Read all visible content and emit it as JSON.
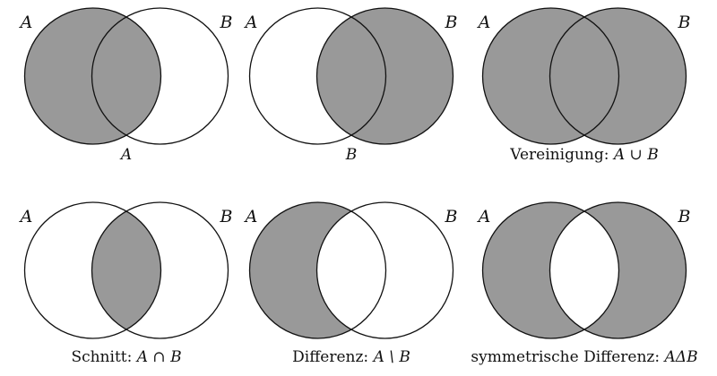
{
  "shade_color": "#999999",
  "outline_color": "#111111",
  "diagrams": [
    {
      "id": "set-a",
      "shaded": [
        "a_only",
        "both"
      ],
      "label_a": "A",
      "label_b": "B",
      "caption_text": "",
      "caption_expr": "A"
    },
    {
      "id": "set-b",
      "shaded": [
        "b_only",
        "both"
      ],
      "label_a": "A",
      "label_b": "B",
      "caption_text": "",
      "caption_expr": "B"
    },
    {
      "id": "union",
      "shaded": [
        "a_only",
        "both",
        "b_only"
      ],
      "label_a": "A",
      "label_b": "B",
      "caption_text": "Vereinigung: ",
      "caption_expr": "A ∪ B"
    },
    {
      "id": "intersection",
      "shaded": [
        "both"
      ],
      "label_a": "A",
      "label_b": "B",
      "caption_text": "Schnitt: ",
      "caption_expr": "A ∩ B"
    },
    {
      "id": "difference",
      "shaded": [
        "a_only"
      ],
      "label_a": "A",
      "label_b": "B",
      "caption_text": "Differenz: ",
      "caption_expr": "A \\ B"
    },
    {
      "id": "symmetric-difference",
      "shaded": [
        "a_only",
        "b_only"
      ],
      "label_a": "A",
      "label_b": "B",
      "caption_text": "symmetrische Differenz: ",
      "caption_expr": "AΔB"
    }
  ]
}
